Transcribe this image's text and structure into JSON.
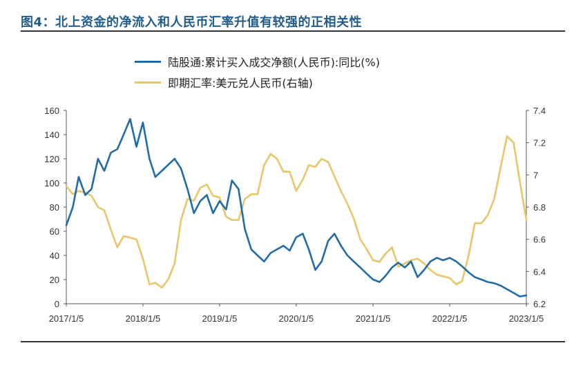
{
  "figure_title": "图4：北上资金的净流入和人民币汇率升值有较强的正相关性",
  "colors": {
    "series1": "#1f6aa8",
    "series2": "#e8c567",
    "rule": "#333333"
  },
  "chart_data": {
    "type": "line",
    "title": "",
    "xlabel": "",
    "ylabel": "",
    "x_ticks": [
      "2017/1/5",
      "2018/1/5",
      "2019/1/5",
      "2020/1/5",
      "2021/1/5",
      "2022/1/5",
      "2023/1/5"
    ],
    "y_ticks": [
      "0",
      "20",
      "40",
      "60",
      "80",
      "100",
      "120",
      "140",
      "160"
    ],
    "y2_ticks": [
      "6.2",
      "6.4",
      "6.6",
      "6.8",
      "7",
      "7.2",
      "7.4"
    ],
    "ylim": [
      0,
      160
    ],
    "y2lim": [
      6.2,
      7.4
    ],
    "legend_position": "top",
    "series": [
      {
        "name": "陆股通:累计买入成交净额(人民币):同比(%)",
        "axis": "left",
        "color": "#1f6aa8",
        "points": [
          [
            "2017/1/5",
            65
          ],
          [
            "2017/2/5",
            80
          ],
          [
            "2017/3/5",
            105
          ],
          [
            "2017/4/5",
            90
          ],
          [
            "2017/5/5",
            95
          ],
          [
            "2017/6/5",
            120
          ],
          [
            "2017/7/5",
            110
          ],
          [
            "2017/8/5",
            125
          ],
          [
            "2017/9/5",
            128
          ],
          [
            "2017/10/5",
            140
          ],
          [
            "2017/11/5",
            153
          ],
          [
            "2017/12/5",
            130
          ],
          [
            "2018/1/5",
            150
          ],
          [
            "2018/2/5",
            120
          ],
          [
            "2018/3/5",
            105
          ],
          [
            "2018/4/5",
            110
          ],
          [
            "2018/5/5",
            115
          ],
          [
            "2018/6/5",
            120
          ],
          [
            "2018/7/5",
            112
          ],
          [
            "2018/8/5",
            95
          ],
          [
            "2018/9/5",
            75
          ],
          [
            "2018/10/5",
            85
          ],
          [
            "2018/11/5",
            90
          ],
          [
            "2018/12/5",
            75
          ],
          [
            "2019/1/5",
            85
          ],
          [
            "2019/2/5",
            78
          ],
          [
            "2019/3/5",
            102
          ],
          [
            "2019/4/5",
            95
          ],
          [
            "2019/5/5",
            62
          ],
          [
            "2019/6/5",
            45
          ],
          [
            "2019/7/5",
            40
          ],
          [
            "2019/8/5",
            35
          ],
          [
            "2019/9/5",
            42
          ],
          [
            "2019/10/5",
            45
          ],
          [
            "2019/11/5",
            48
          ],
          [
            "2019/12/5",
            44
          ],
          [
            "2020/1/5",
            55
          ],
          [
            "2020/2/5",
            58
          ],
          [
            "2020/3/5",
            45
          ],
          [
            "2020/4/5",
            28
          ],
          [
            "2020/5/5",
            35
          ],
          [
            "2020/6/5",
            52
          ],
          [
            "2020/7/5",
            58
          ],
          [
            "2020/8/5",
            48
          ],
          [
            "2020/9/5",
            40
          ],
          [
            "2020/10/5",
            35
          ],
          [
            "2020/11/5",
            30
          ],
          [
            "2020/12/5",
            25
          ],
          [
            "2021/1/5",
            20
          ],
          [
            "2021/2/5",
            18
          ],
          [
            "2021/3/5",
            23
          ],
          [
            "2021/4/5",
            30
          ],
          [
            "2021/5/5",
            34
          ],
          [
            "2021/6/5",
            30
          ],
          [
            "2021/7/5",
            35
          ],
          [
            "2021/8/5",
            22
          ],
          [
            "2021/9/5",
            28
          ],
          [
            "2021/10/5",
            35
          ],
          [
            "2021/11/5",
            38
          ],
          [
            "2021/12/5",
            36
          ],
          [
            "2022/1/5",
            38
          ],
          [
            "2022/2/5",
            35
          ],
          [
            "2022/3/5",
            31
          ],
          [
            "2022/4/5",
            26
          ],
          [
            "2022/5/5",
            22
          ],
          [
            "2022/6/5",
            20
          ],
          [
            "2022/7/5",
            18
          ],
          [
            "2022/8/5",
            17
          ],
          [
            "2022/9/5",
            15
          ],
          [
            "2022/10/5",
            12
          ],
          [
            "2022/11/5",
            9
          ],
          [
            "2022/12/5",
            6
          ],
          [
            "2023/1/5",
            7
          ]
        ]
      },
      {
        "name": "即期汇率:美元兑人民币(右轴)",
        "axis": "right",
        "color": "#e8c567",
        "points": [
          [
            "2017/1/5",
            6.93
          ],
          [
            "2017/2/5",
            6.88
          ],
          [
            "2017/3/5",
            6.9
          ],
          [
            "2017/4/5",
            6.89
          ],
          [
            "2017/5/5",
            6.87
          ],
          [
            "2017/6/5",
            6.8
          ],
          [
            "2017/7/5",
            6.78
          ],
          [
            "2017/8/5",
            6.66
          ],
          [
            "2017/9/5",
            6.55
          ],
          [
            "2017/10/5",
            6.62
          ],
          [
            "2017/11/5",
            6.61
          ],
          [
            "2017/12/5",
            6.6
          ],
          [
            "2018/1/5",
            6.48
          ],
          [
            "2018/2/5",
            6.32
          ],
          [
            "2018/3/5",
            6.33
          ],
          [
            "2018/4/5",
            6.3
          ],
          [
            "2018/5/5",
            6.35
          ],
          [
            "2018/6/5",
            6.45
          ],
          [
            "2018/7/5",
            6.72
          ],
          [
            "2018/8/5",
            6.85
          ],
          [
            "2018/9/5",
            6.84
          ],
          [
            "2018/10/5",
            6.92
          ],
          [
            "2018/11/5",
            6.94
          ],
          [
            "2018/12/5",
            6.87
          ],
          [
            "2019/1/5",
            6.86
          ],
          [
            "2019/2/5",
            6.74
          ],
          [
            "2019/3/5",
            6.72
          ],
          [
            "2019/4/5",
            6.72
          ],
          [
            "2019/5/5",
            6.85
          ],
          [
            "2019/6/5",
            6.88
          ],
          [
            "2019/7/5",
            6.88
          ],
          [
            "2019/8/5",
            7.06
          ],
          [
            "2019/9/5",
            7.13
          ],
          [
            "2019/10/5",
            7.1
          ],
          [
            "2019/11/5",
            7.02
          ],
          [
            "2019/12/5",
            7.02
          ],
          [
            "2020/1/5",
            6.9
          ],
          [
            "2020/2/5",
            6.97
          ],
          [
            "2020/3/5",
            7.06
          ],
          [
            "2020/4/5",
            7.05
          ],
          [
            "2020/5/5",
            7.1
          ],
          [
            "2020/6/5",
            7.08
          ],
          [
            "2020/7/5",
            6.99
          ],
          [
            "2020/8/5",
            6.9
          ],
          [
            "2020/9/5",
            6.82
          ],
          [
            "2020/10/5",
            6.73
          ],
          [
            "2020/11/5",
            6.6
          ],
          [
            "2020/12/5",
            6.54
          ],
          [
            "2021/1/5",
            6.47
          ],
          [
            "2021/2/5",
            6.46
          ],
          [
            "2021/3/5",
            6.51
          ],
          [
            "2021/4/5",
            6.55
          ],
          [
            "2021/5/5",
            6.43
          ],
          [
            "2021/6/5",
            6.45
          ],
          [
            "2021/7/5",
            6.47
          ],
          [
            "2021/8/5",
            6.48
          ],
          [
            "2021/9/5",
            6.45
          ],
          [
            "2021/10/5",
            6.41
          ],
          [
            "2021/11/5",
            6.38
          ],
          [
            "2021/12/5",
            6.37
          ],
          [
            "2022/1/5",
            6.36
          ],
          [
            "2022/2/5",
            6.32
          ],
          [
            "2022/3/5",
            6.34
          ],
          [
            "2022/4/5",
            6.5
          ],
          [
            "2022/5/5",
            6.7
          ],
          [
            "2022/6/5",
            6.7
          ],
          [
            "2022/7/5",
            6.75
          ],
          [
            "2022/8/5",
            6.85
          ],
          [
            "2022/9/5",
            7.05
          ],
          [
            "2022/10/5",
            7.24
          ],
          [
            "2022/11/5",
            7.2
          ],
          [
            "2022/12/5",
            6.96
          ],
          [
            "2023/1/5",
            6.72
          ]
        ]
      }
    ]
  }
}
